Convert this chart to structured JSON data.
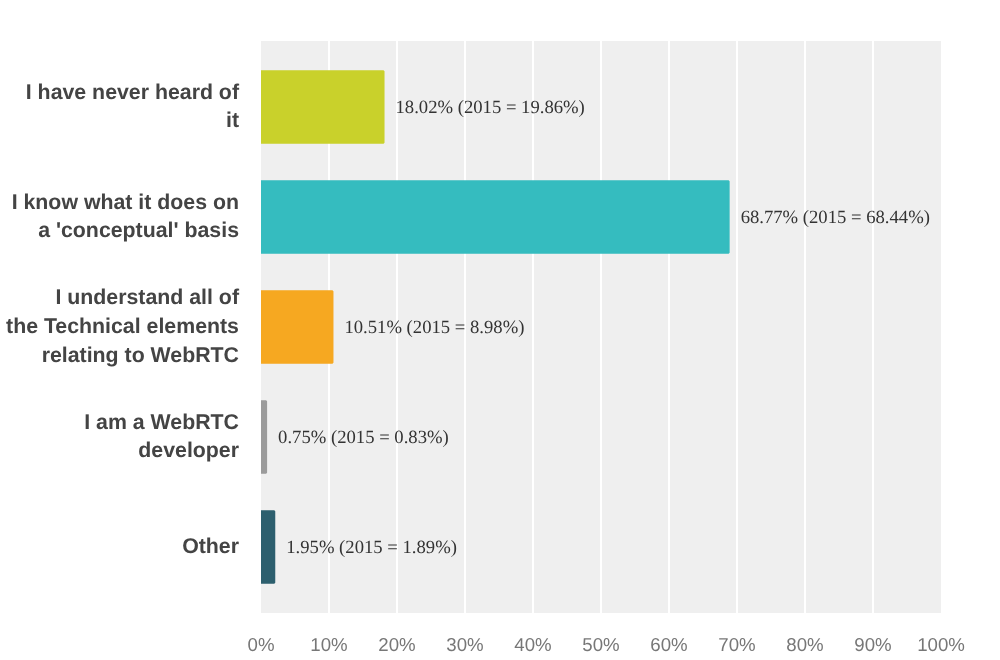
{
  "chart_data": {
    "type": "bar",
    "orientation": "horizontal",
    "categories": [
      "I have never heard of it",
      "I know what it does on a 'conceptual' basis",
      "I understand all of the Technical elements relating to WebRTC",
      "I am a WebRTC developer",
      "Other"
    ],
    "values": [
      18.02,
      68.77,
      10.51,
      0.75,
      1.95
    ],
    "colors": [
      "#c9d12b",
      "#35bcbf",
      "#f6a821",
      "#9b9b9b",
      "#2d5f6e"
    ],
    "value_labels": [
      "18.02%  (2015 = 19.86%)",
      "68.77%  (2015 = 68.44%)",
      "10.51%  (2015 = 8.98%)",
      "0.75%  (2015 = 0.83%)",
      "1.95%  (2015 = 1.89%)"
    ],
    "xlim": [
      0,
      100
    ],
    "xticks": [
      {
        "value": 0,
        "label": "0%"
      },
      {
        "value": 10,
        "label": "10%"
      },
      {
        "value": 20,
        "label": "20%"
      },
      {
        "value": 30,
        "label": "30%"
      },
      {
        "value": 40,
        "label": "40%"
      },
      {
        "value": 50,
        "label": "50%"
      },
      {
        "value": 60,
        "label": "60%"
      },
      {
        "value": 70,
        "label": "70%"
      },
      {
        "value": 80,
        "label": "80%"
      },
      {
        "value": 90,
        "label": "90%"
      },
      {
        "value": 100,
        "label": "100%"
      }
    ],
    "grid": "x"
  }
}
